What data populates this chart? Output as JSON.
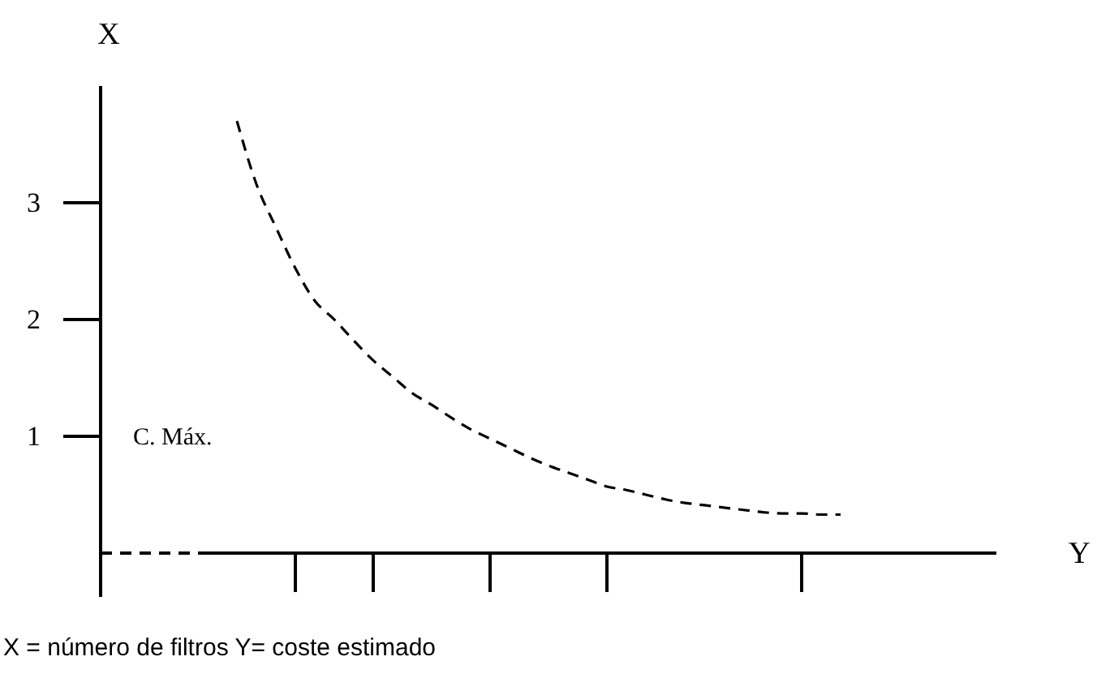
{
  "chart_data": {
    "type": "line",
    "xlabel": "Y",
    "ylabel": "X",
    "categories": [
      null,
      null,
      null,
      null,
      null,
      null,
      null,
      null,
      null,
      null,
      null,
      null,
      null,
      null,
      null,
      null,
      null,
      null,
      null,
      null,
      null,
      null,
      null,
      null,
      null,
      null,
      null,
      null,
      null,
      null,
      null,
      null,
      null,
      null,
      null,
      null,
      null,
      null,
      null,
      null,
      null,
      null,
      null,
      null,
      null,
      null,
      null
    ],
    "series": [
      {
        "color": "#000000",
        "values": [
          null,
          null,
          null,
          null,
          null,
          null,
          null,
          3.7,
          3.16,
          2.79,
          2.44,
          2.16,
          2.0,
          1.82,
          1.65,
          1.51,
          1.37,
          1.27,
          1.16,
          1.06,
          0.98,
          0.9,
          0.82,
          0.75,
          0.69,
          0.63,
          0.57,
          0.54,
          0.5,
          0.46,
          0.43,
          0.41,
          0.39,
          0.37,
          0.35,
          0.34,
          0.34,
          0.33,
          0.33,
          null,
          null,
          null,
          null,
          null,
          null,
          null,
          null
        ]
      }
    ],
    "line_style": "dashed",
    "ylim": [
      0,
      4
    ],
    "yticks": [
      1,
      2,
      3
    ],
    "annotations": [
      "C. Máx.",
      "X = número de filtros Y= coste estimado"
    ]
  }
}
